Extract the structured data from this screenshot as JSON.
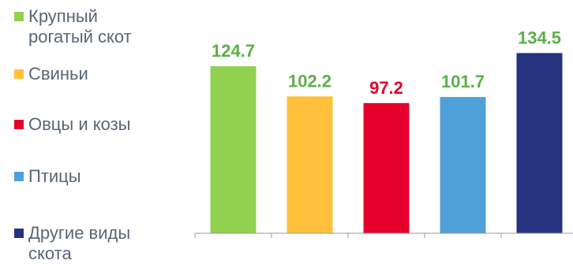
{
  "chart_data": {
    "type": "bar",
    "categories": [
      "Крупный рогатый скот",
      "Свиньи",
      "Овцы и козы",
      "Птицы",
      "Другие виды скота"
    ],
    "values": [
      124.7,
      102.2,
      97.2,
      101.7,
      134.5
    ],
    "value_labels": [
      "124.7",
      "102.2",
      "97.2",
      "101.7",
      "134.5"
    ],
    "colors": [
      "#92d050",
      "#ffc13b",
      "#e4002b",
      "#4fa0d8",
      "#263380"
    ],
    "label_colors": [
      "#5bb048",
      "#5bb048",
      "#e4002b",
      "#5bb048",
      "#5bb048"
    ],
    "legend": {
      "placement": "left",
      "items": [
        {
          "label": "Крупный\nрогатый скот",
          "color": "#92d050"
        },
        {
          "label": "Свиньи",
          "color": "#ffc13b"
        },
        {
          "label": "Овцы и козы",
          "color": "#e4002b"
        },
        {
          "label": "Птицы",
          "color": "#4fa0d8"
        },
        {
          "label": "Другие виды\nскота",
          "color": "#263380"
        }
      ]
    },
    "ylim": [
      0,
      140
    ],
    "grid": false,
    "title": "",
    "xlabel": "",
    "ylabel": ""
  }
}
